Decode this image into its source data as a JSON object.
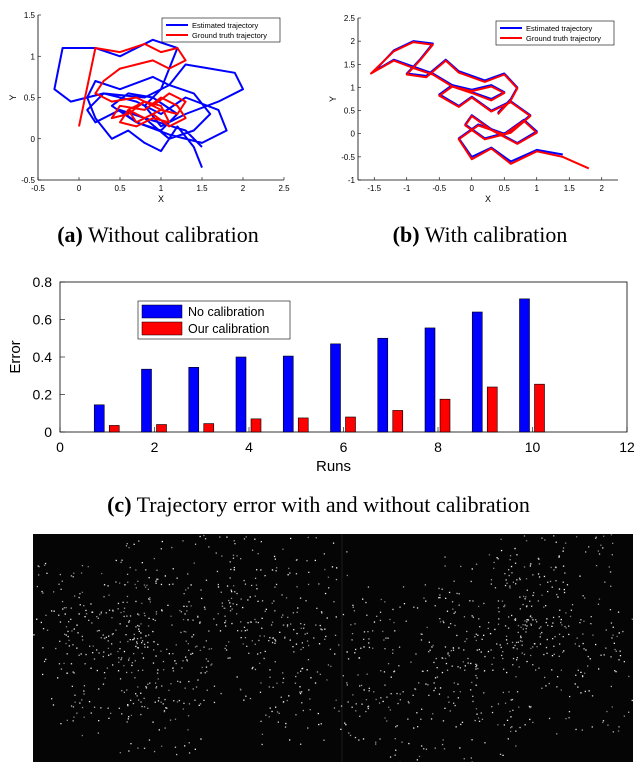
{
  "captions": {
    "a_label": "(a)",
    "a_text": " Without calibration",
    "b_label": "(b)",
    "b_text": " With calibration",
    "c_label": "(c)",
    "c_text": " Trajectory error with and without calibration"
  },
  "chart_data": [
    {
      "type": "line",
      "xlabel": "X",
      "ylabel": "Y",
      "xlim": [
        -0.5,
        2.5
      ],
      "ylim": [
        -0.5,
        1.5
      ],
      "xticks": [
        "-0.5",
        "0",
        "0.5",
        "1",
        "1.5",
        "2",
        "2.5"
      ],
      "yticks": [
        "-0.5",
        "0",
        "0.5",
        "1",
        "1.5"
      ],
      "legend_position": "top-right",
      "series": [
        {
          "name": "Estimated trajectory",
          "color": "#0000ff",
          "x": [
            1.5,
            1.4,
            1.2,
            1.0,
            0.8,
            0.6,
            0.4,
            0.2,
            0.1,
            0.2,
            0.5,
            0.9,
            1.1,
            1.3,
            1.6,
            1.9,
            2.0,
            1.7,
            1.3,
            1.0,
            0.8,
            1.0,
            1.2,
            0.9,
            0.5,
            0.2,
            -0.2,
            -0.3,
            -0.1,
            0.3,
            0.8,
            1.1,
            1.4,
            1.6,
            1.4,
            1.1,
            0.8,
            0.5,
            0.2,
            0.1,
            0.3,
            0.7,
            1.0,
            1.3,
            1.7,
            1.8,
            1.5,
            1.1,
            0.7,
            0.4,
            0.6,
            0.9,
            1.2,
            1.0,
            0.7,
            0.5,
            0.8,
            1.3,
            1.5
          ],
          "y": [
            -0.35,
            -0.1,
            0.15,
            -0.15,
            -0.05,
            0.1,
            0.0,
            0.25,
            0.5,
            0.7,
            0.6,
            0.75,
            0.65,
            0.9,
            0.85,
            0.8,
            0.6,
            0.45,
            0.3,
            0.15,
            0.4,
            0.6,
            1.1,
            1.2,
            1.0,
            1.1,
            1.1,
            0.6,
            0.45,
            0.55,
            0.5,
            0.65,
            0.55,
            0.3,
            0.1,
            0.0,
            0.25,
            0.35,
            0.2,
            0.35,
            0.55,
            0.45,
            0.3,
            0.5,
            0.35,
            0.1,
            -0.05,
            0.05,
            0.2,
            0.4,
            0.55,
            0.5,
            0.3,
            0.1,
            0.2,
            0.35,
            0.25,
            0.1,
            -0.1
          ]
        },
        {
          "name": "Ground truth trajectory",
          "color": "#ff0000",
          "x": [
            0.0,
            0.2,
            0.5,
            0.8,
            1.0,
            1.2,
            1.3,
            1.1,
            0.9,
            0.7,
            0.5,
            0.3,
            0.2,
            0.4,
            0.7,
            0.9,
            1.1,
            1.3,
            1.2,
            1.0,
            0.8,
            0.6,
            0.5,
            0.7,
            0.9,
            1.1,
            1.0,
            0.8,
            0.6,
            0.4,
            0.5,
            0.8,
            1.0,
            1.2,
            1.3,
            1.1,
            0.9,
            0.7,
            0.6,
            0.8,
            1.0
          ],
          "y": [
            0.15,
            1.1,
            1.05,
            1.15,
            1.05,
            1.1,
            0.95,
            0.85,
            0.95,
            0.9,
            0.85,
            0.7,
            0.55,
            0.45,
            0.5,
            0.4,
            0.55,
            0.45,
            0.3,
            0.35,
            0.25,
            0.35,
            0.2,
            0.15,
            0.25,
            0.2,
            0.4,
            0.45,
            0.3,
            0.25,
            0.4,
            0.35,
            0.5,
            0.4,
            0.25,
            0.15,
            0.3,
            0.2,
            0.35,
            0.45,
            0.35
          ]
        }
      ]
    },
    {
      "type": "line",
      "xlabel": "X",
      "ylabel": "Y",
      "xlim": [
        -1.75,
        2.25
      ],
      "ylim": [
        -1,
        2.5
      ],
      "xticks": [
        "-1.5",
        "-1",
        "-0.5",
        "0",
        "0.5",
        "1",
        "1.5",
        "2"
      ],
      "yticks": [
        "-1",
        "-0.5",
        "0",
        "0.5",
        "1",
        "1.5",
        "2",
        "2.5"
      ],
      "legend_position": "top-right",
      "series": [
        {
          "name": "Estimated trajectory",
          "color": "#0000ff",
          "x": [
            1.4,
            1.0,
            0.6,
            0.3,
            0.0,
            -0.2,
            0.1,
            0.5,
            0.8,
            1.0,
            0.7,
            0.3,
            0.0,
            -0.1,
            0.2,
            0.6,
            0.9,
            0.6,
            0.3,
            0.0,
            -0.2,
            -0.5,
            -0.3,
            0.0,
            0.3,
            0.5,
            0.3,
            0.0,
            -0.3,
            -0.6,
            -0.9,
            -1.2,
            -1.5,
            -1.2,
            -0.9,
            -0.6,
            -0.8,
            -1.0,
            -0.7,
            -0.4,
            -0.2,
            0.2,
            0.5,
            0.7,
            0.6,
            0.4
          ],
          "y": [
            -0.45,
            -0.35,
            -0.6,
            -0.3,
            -0.5,
            -0.1,
            0.2,
            0.0,
            0.3,
            0.05,
            -0.2,
            0.1,
            0.4,
            0.2,
            -0.1,
            0.05,
            0.4,
            0.7,
            0.5,
            0.8,
            0.6,
            0.85,
            1.05,
            0.95,
            1.05,
            0.9,
            0.75,
            0.9,
            1.05,
            1.3,
            1.45,
            1.6,
            1.35,
            1.8,
            2.0,
            1.95,
            1.6,
            1.3,
            1.25,
            1.6,
            1.35,
            1.15,
            1.3,
            1.0,
            0.75,
            0.45
          ]
        },
        {
          "name": "Ground truth trajectory",
          "color": "#ff0000",
          "x": [
            1.8,
            1.4,
            1.0,
            0.6,
            0.3,
            0.0,
            -0.2,
            0.1,
            0.5,
            0.8,
            1.0,
            0.7,
            0.3,
            0.0,
            -0.1,
            0.2,
            0.6,
            0.9,
            0.6,
            0.3,
            0.0,
            -0.2,
            -0.5,
            -0.3,
            0.0,
            0.3,
            0.5,
            0.3,
            0.0,
            -0.3,
            -0.6,
            -0.9,
            -1.2,
            -1.55,
            -1.2,
            -0.9,
            -0.6,
            -0.8,
            -1.0,
            -0.7,
            -0.4,
            -0.2,
            0.2,
            0.5,
            0.7,
            0.6,
            0.4
          ],
          "y": [
            -0.75,
            -0.5,
            -0.38,
            -0.65,
            -0.32,
            -0.55,
            -0.12,
            0.18,
            -0.02,
            0.28,
            0.02,
            -0.22,
            0.08,
            0.38,
            0.18,
            -0.12,
            0.02,
            0.38,
            0.68,
            0.48,
            0.78,
            0.58,
            0.82,
            1.02,
            0.92,
            1.02,
            0.88,
            0.72,
            0.88,
            1.02,
            1.28,
            1.42,
            1.58,
            1.3,
            1.78,
            1.98,
            1.92,
            1.58,
            1.28,
            1.22,
            1.58,
            1.32,
            1.12,
            1.28,
            0.98,
            0.72,
            0.42
          ]
        }
      ]
    },
    {
      "type": "bar",
      "xlabel": "Runs",
      "ylabel": "Error",
      "xlim": [
        0,
        12
      ],
      "ylim": [
        0,
        0.8
      ],
      "xticks": [
        "0",
        "2",
        "4",
        "6",
        "8",
        "10",
        "12"
      ],
      "yticks": [
        "0",
        "0.2",
        "0.4",
        "0.6",
        "0.8"
      ],
      "legend_position": "top-left",
      "categories": [
        1,
        2,
        3,
        4,
        5,
        6,
        7,
        8,
        9,
        10
      ],
      "series": [
        {
          "name": "No calibration",
          "color": "#0000ff",
          "values": [
            0.145,
            0.335,
            0.345,
            0.4,
            0.405,
            0.47,
            0.5,
            0.555,
            0.64,
            0.71
          ]
        },
        {
          "name": "Our calibration",
          "color": "#ff0000",
          "values": [
            0.035,
            0.04,
            0.045,
            0.07,
            0.075,
            0.08,
            0.115,
            0.175,
            0.24,
            0.255
          ]
        }
      ]
    }
  ]
}
